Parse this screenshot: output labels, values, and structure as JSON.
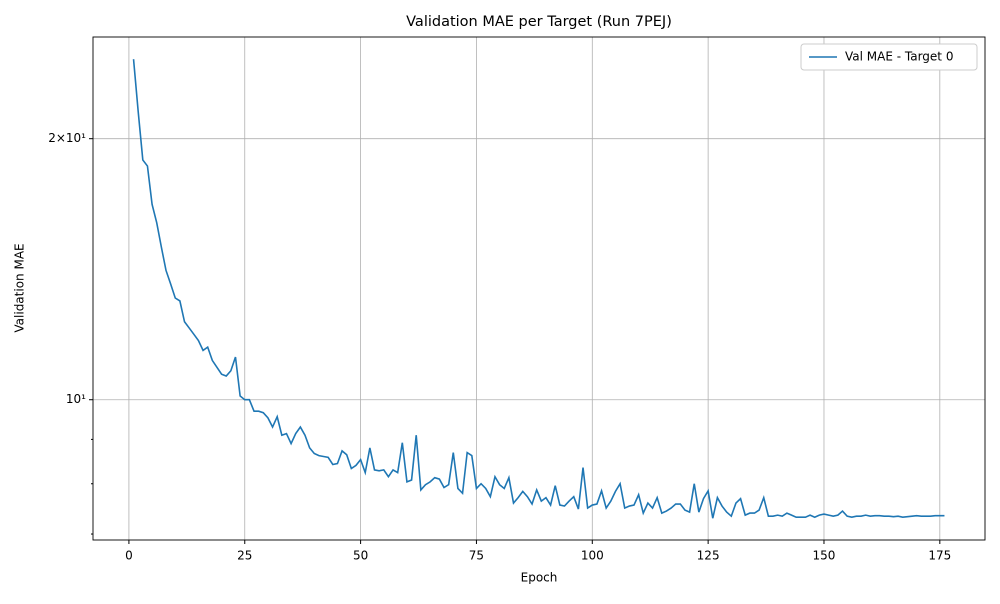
{
  "chart_data": {
    "type": "line",
    "title": "Validation MAE per Target (Run 7PEJ)",
    "x_label": "Epoch",
    "y_label": "Validation MAE",
    "x": [
      1,
      2,
      3,
      4,
      5,
      6,
      7,
      8,
      9,
      10,
      11,
      12,
      13,
      14,
      15,
      16,
      17,
      18,
      19,
      20,
      21,
      22,
      23,
      24,
      25,
      26,
      27,
      28,
      29,
      30,
      31,
      32,
      33,
      34,
      35,
      36,
      37,
      38,
      39,
      40,
      41,
      42,
      43,
      44,
      45,
      46,
      47,
      48,
      49,
      50,
      51,
      52,
      53,
      54,
      55,
      56,
      57,
      58,
      59,
      60,
      61,
      62,
      63,
      64,
      65,
      66,
      67,
      68,
      69,
      70,
      71,
      72,
      73,
      74,
      75,
      76,
      77,
      78,
      79,
      80,
      81,
      82,
      83,
      84,
      85,
      86,
      87,
      88,
      89,
      90,
      91,
      92,
      93,
      94,
      95,
      96,
      97,
      98,
      99,
      100,
      101,
      102,
      103,
      104,
      105,
      106,
      107,
      108,
      109,
      110,
      111,
      112,
      113,
      114,
      115,
      116,
      117,
      118,
      119,
      120,
      121,
      122,
      123,
      124,
      125,
      126,
      127,
      128,
      129,
      130,
      131,
      132,
      133,
      134,
      135,
      136,
      137,
      138,
      139,
      140,
      141,
      142,
      143,
      144,
      145,
      146,
      147,
      148,
      149,
      150,
      151,
      152,
      153,
      154,
      155,
      156,
      157,
      158,
      159,
      160,
      161,
      162,
      163,
      164,
      165,
      166,
      167,
      168,
      169,
      170,
      171,
      172,
      173,
      174,
      175,
      176
    ],
    "series": [
      {
        "name": "Val MAE - Target 0",
        "color": "#1f77b4",
        "values": [
          24.7,
          21.5,
          18.9,
          18.6,
          16.8,
          16.0,
          15.0,
          14.1,
          13.6,
          13.1,
          13.0,
          12.3,
          12.1,
          11.9,
          11.7,
          11.4,
          11.5,
          11.1,
          10.9,
          10.7,
          10.65,
          10.8,
          11.2,
          10.1,
          10.0,
          10.0,
          9.7,
          9.7,
          9.66,
          9.53,
          9.3,
          9.56,
          9.1,
          9.14,
          8.9,
          9.14,
          9.3,
          9.1,
          8.8,
          8.67,
          8.62,
          8.6,
          8.58,
          8.42,
          8.44,
          8.73,
          8.64,
          8.33,
          8.4,
          8.53,
          8.24,
          8.8,
          8.3,
          8.28,
          8.3,
          8.15,
          8.3,
          8.24,
          8.92,
          8.04,
          8.08,
          9.1,
          7.87,
          7.98,
          8.04,
          8.13,
          8.1,
          7.92,
          7.98,
          8.69,
          7.9,
          7.8,
          8.69,
          8.62,
          7.9,
          8.0,
          7.9,
          7.73,
          8.15,
          7.98,
          7.9,
          8.13,
          7.6,
          7.71,
          7.84,
          7.73,
          7.58,
          7.87,
          7.64,
          7.71,
          7.56,
          7.96,
          7.56,
          7.54,
          7.64,
          7.73,
          7.48,
          8.35,
          7.5,
          7.56,
          7.58,
          7.85,
          7.5,
          7.64,
          7.84,
          8.0,
          7.5,
          7.54,
          7.56,
          7.77,
          7.4,
          7.6,
          7.5,
          7.71,
          7.4,
          7.44,
          7.5,
          7.58,
          7.58,
          7.46,
          7.42,
          8.0,
          7.42,
          7.69,
          7.85,
          7.3,
          7.71,
          7.54,
          7.42,
          7.34,
          7.6,
          7.69,
          7.36,
          7.4,
          7.4,
          7.46,
          7.71,
          7.34,
          7.34,
          7.36,
          7.34,
          7.4,
          7.36,
          7.32,
          7.32,
          7.32,
          7.36,
          7.32,
          7.36,
          7.38,
          7.36,
          7.34,
          7.36,
          7.44,
          7.34,
          7.32,
          7.34,
          7.34,
          7.36,
          7.34,
          7.35,
          7.35,
          7.34,
          7.34,
          7.33,
          7.34,
          7.32,
          7.33,
          7.34,
          7.35,
          7.34,
          7.34,
          7.34,
          7.35,
          7.35,
          7.35
        ]
      }
    ],
    "xlim": [
      -7.75,
      184.75
    ],
    "xticks": [
      0,
      25,
      50,
      75,
      100,
      125,
      150,
      175
    ],
    "ylim": [
      6.89,
      26.2
    ],
    "log_y": true,
    "yticks": [
      {
        "value": 10,
        "label": "10¹"
      },
      {
        "value": 20,
        "label": "2×10¹"
      }
    ],
    "yminorticks": [
      7,
      8,
      9
    ],
    "grid": true,
    "legend": "upper right"
  }
}
